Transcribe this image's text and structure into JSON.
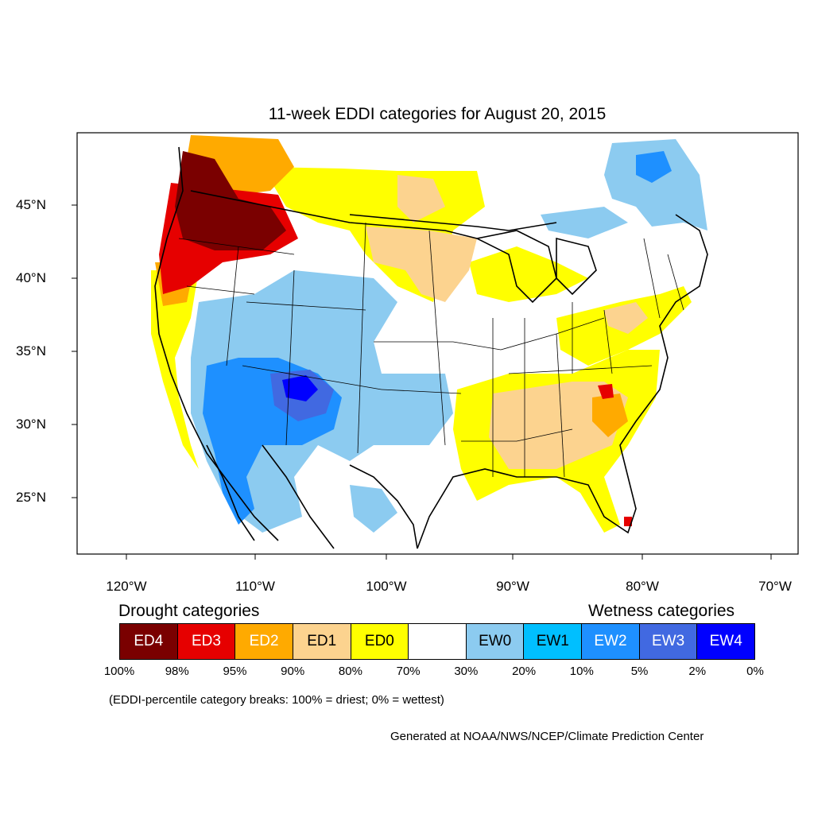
{
  "title": "11-week EDDI categories for August 20, 2015",
  "lat_labels": [
    "45°N",
    "40°N",
    "35°N",
    "30°N",
    "25°N"
  ],
  "lon_labels": [
    "120°W",
    "110°W",
    "100°W",
    "90°W",
    "80°W",
    "70°W"
  ],
  "legend": {
    "drought_heading": "Drought categories",
    "wetness_heading": "Wetness categories",
    "categories": [
      {
        "label": "ED4",
        "color": "#7a0000",
        "text_color": "#ffffff"
      },
      {
        "label": "ED3",
        "color": "#e60000",
        "text_color": "#ffffff"
      },
      {
        "label": "ED2",
        "color": "#ffaa00",
        "text_color": "#ffffff"
      },
      {
        "label": "ED1",
        "color": "#fcd38f",
        "text_color": "#000000"
      },
      {
        "label": "ED0",
        "color": "#ffff00",
        "text_color": "#000000"
      },
      {
        "label": "",
        "color": "#ffffff",
        "text_color": "#000000"
      },
      {
        "label": "EW0",
        "color": "#8ccbf0",
        "text_color": "#000000"
      },
      {
        "label": "EW1",
        "color": "#00bfff",
        "text_color": "#000000"
      },
      {
        "label": "EW2",
        "color": "#1e90ff",
        "text_color": "#ffffff"
      },
      {
        "label": "EW3",
        "color": "#4169e1",
        "text_color": "#ffffff"
      },
      {
        "label": "EW4",
        "color": "#0000ff",
        "text_color": "#ffffff"
      }
    ],
    "percent_breaks": [
      "100%",
      "98%",
      "95%",
      "90%",
      "80%",
      "70%",
      "30%",
      "20%",
      "10%",
      "5%",
      "2%",
      "0%"
    ]
  },
  "note": "(EDDI-percentile category breaks: 100% = driest; 0% = wettest)",
  "credit": "Generated at NOAA/NWS/NCEP/Climate Prediction Center"
}
